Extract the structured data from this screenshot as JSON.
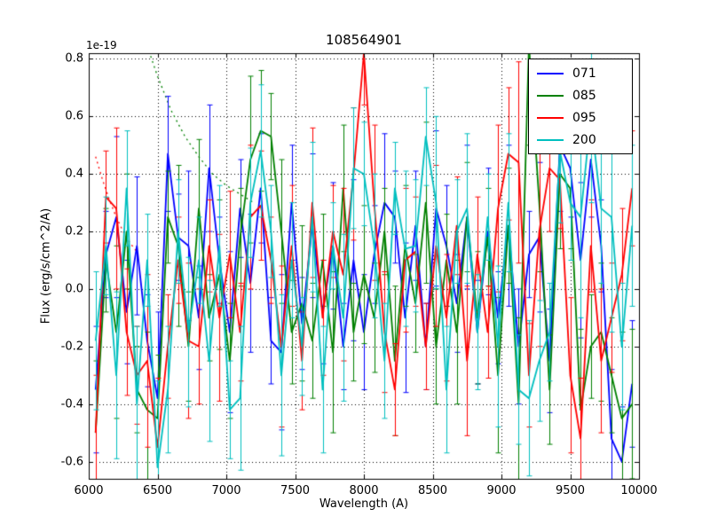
{
  "figure": {
    "title": "108564901",
    "offset_text": "1e-19",
    "xlabel": "Wavelength (A)",
    "ylabel": "Flux (erg/s/cm^2/A)"
  },
  "chart_data": {
    "type": "line",
    "title": "108564901",
    "xlabel": "Wavelength (A)",
    "ylabel": "Flux (erg/s/cm^2/A)",
    "y_scale_factor": "1e-19",
    "grid": true,
    "legend_position": "upper right",
    "xlim": [
      6000,
      10000
    ],
    "ylim": [
      -0.66,
      0.82
    ],
    "x_ticks": [
      6000,
      6500,
      7000,
      7500,
      8000,
      8500,
      9000,
      9500,
      10000
    ],
    "x_tick_labels": [
      "6000",
      "6500",
      "7000",
      "7500",
      "8000",
      "8500",
      "9000",
      "9500",
      "10000"
    ],
    "y_ticks": [
      -0.6,
      -0.4,
      -0.2,
      0.0,
      0.2,
      0.4,
      0.6,
      0.8
    ],
    "y_tick_labels": [
      "-0.6",
      "-0.4",
      "-0.2",
      "0.0",
      "0.2",
      "0.4",
      "0.6",
      "0.8"
    ],
    "x": [
      6050,
      6125,
      6200,
      6275,
      6350,
      6425,
      6500,
      6575,
      6650,
      6725,
      6800,
      6875,
      6950,
      7025,
      7100,
      7175,
      7250,
      7325,
      7400,
      7475,
      7550,
      7625,
      7700,
      7775,
      7850,
      7925,
      8000,
      8075,
      8150,
      8225,
      8300,
      8375,
      8450,
      8525,
      8600,
      8675,
      8750,
      8825,
      8900,
      8975,
      9050,
      9125,
      9200,
      9275,
      9350,
      9425,
      9500,
      9575,
      9650,
      9725,
      9800,
      9875,
      9950
    ],
    "series": [
      {
        "name": "071",
        "color": "#0000ff",
        "values": [
          -0.35,
          0.12,
          0.25,
          -0.08,
          0.15,
          -0.18,
          -0.38,
          0.47,
          0.18,
          0.15,
          -0.1,
          0.42,
          0.1,
          -0.15,
          0.28,
          0.02,
          0.35,
          -0.18,
          -0.22,
          0.3,
          -0.12,
          0.22,
          -0.08,
          0.15,
          -0.2,
          0.1,
          -0.15,
          0.12,
          0.3,
          0.25,
          -0.1,
          0.22,
          -0.2,
          0.28,
          0.15,
          -0.05,
          0.25,
          -0.15,
          0.2,
          -0.1,
          0.22,
          -0.2,
          0.12,
          0.18,
          -0.25,
          0.5,
          0.42,
          0.1,
          0.45,
          0.15,
          -0.52,
          -0.6,
          -0.33
        ],
        "err": [
          0.22,
          0.15,
          0.28,
          0.18,
          0.24,
          0.16,
          0.3,
          0.2,
          0.15,
          0.26,
          0.18,
          0.22,
          0.15,
          0.28,
          0.17,
          0.24,
          0.19,
          0.15,
          0.27,
          0.2,
          0.16,
          0.25,
          0.18,
          0.22,
          0.15,
          0.28,
          0.2,
          0.17,
          0.24,
          0.16,
          0.26,
          0.19,
          0.15,
          0.27,
          0.21,
          0.17,
          0.25,
          0.18,
          0.22,
          0.16,
          0.28,
          0.2,
          0.15,
          0.26,
          0.18,
          0.23,
          0.17,
          0.27,
          0.2,
          0.16,
          0.24,
          0.19,
          0.22
        ]
      },
      {
        "name": "085",
        "color": "#008000",
        "values": [
          -0.5,
          0.1,
          -0.15,
          0.2,
          -0.35,
          -0.42,
          -0.45,
          0.25,
          0.15,
          -0.2,
          0.28,
          -0.1,
          0.05,
          -0.25,
          0.18,
          0.45,
          0.55,
          0.53,
          0.2,
          -0.15,
          -0.05,
          -0.18,
          0.1,
          -0.22,
          0.35,
          -0.15,
          0.05,
          -0.1,
          0.2,
          -0.25,
          0.15,
          -0.05,
          0.3,
          -0.2,
          0.1,
          -0.15,
          0.25,
          -0.1,
          0.18,
          -0.3,
          0.22,
          -0.4,
          0.85,
          0.3,
          -0.35,
          0.4,
          0.35,
          -0.42,
          -0.2,
          -0.15,
          -0.3,
          -0.45,
          -0.4
        ],
        "err": [
          0.25,
          0.18,
          0.3,
          0.2,
          0.15,
          0.27,
          0.22,
          0.16,
          0.28,
          0.19,
          0.24,
          0.15,
          0.26,
          0.2,
          0.17,
          0.29,
          0.21,
          0.15,
          0.25,
          0.18,
          0.27,
          0.2,
          0.16,
          0.28,
          0.22,
          0.17,
          0.24,
          0.19,
          0.15,
          0.26,
          0.21,
          0.17,
          0.28,
          0.2,
          0.16,
          0.25,
          0.19,
          0.23,
          0.17,
          0.27,
          0.2,
          0.3,
          0.35,
          0.24,
          0.19,
          0.26,
          0.21,
          0.28,
          0.18,
          0.24,
          0.2,
          0.3,
          0.26
        ]
      },
      {
        "name": "095",
        "color": "#ff0000",
        "values": [
          -0.5,
          0.32,
          0.28,
          -0.15,
          -0.3,
          -0.25,
          -0.55,
          -0.2,
          0.1,
          -0.18,
          -0.2,
          0.15,
          -0.1,
          0.12,
          -0.15,
          0.25,
          0.29,
          0.1,
          -0.2,
          0.15,
          -0.25,
          0.3,
          -0.1,
          0.2,
          0.05,
          0.4,
          0.82,
          0.3,
          -0.15,
          -0.35,
          0.1,
          0.13,
          -0.2,
          0.15,
          -0.1,
          0.22,
          -0.25,
          0.12,
          -0.15,
          0.28,
          0.47,
          0.44,
          -0.3,
          0.2,
          0.42,
          0.38,
          -0.3,
          -0.52,
          0.15,
          -0.25,
          -0.1,
          0.05,
          0.35
        ],
        "err": [
          0.2,
          0.16,
          0.28,
          0.22,
          0.17,
          0.3,
          0.24,
          0.18,
          0.15,
          0.27,
          0.2,
          0.16,
          0.29,
          0.22,
          0.17,
          0.25,
          0.19,
          0.15,
          0.28,
          0.21,
          0.17,
          0.26,
          0.2,
          0.16,
          0.3,
          0.23,
          0.18,
          0.27,
          0.21,
          0.16,
          0.25,
          0.19,
          0.15,
          0.28,
          0.22,
          0.17,
          0.26,
          0.2,
          0.16,
          0.29,
          0.23,
          0.35,
          0.18,
          0.4,
          0.22,
          0.17,
          0.27,
          0.21,
          0.16,
          0.25,
          0.19,
          0.23,
          0.2
        ]
      },
      {
        "name": "200",
        "color": "#00bfbf",
        "values": [
          -0.18,
          0.15,
          -0.3,
          0.35,
          -0.4,
          0.1,
          -0.62,
          -0.35,
          0.2,
          -0.15,
          0.1,
          -0.25,
          0.15,
          -0.42,
          -0.38,
          0.3,
          0.48,
          0.2,
          -0.3,
          0.1,
          -0.2,
          0.25,
          -0.35,
          0.15,
          -0.1,
          0.42,
          0.4,
          0.15,
          -0.25,
          0.35,
          0.14,
          0.15,
          0.53,
          0.3,
          -0.35,
          0.2,
          0.28,
          -0.15,
          0.25,
          -0.2,
          0.3,
          -0.35,
          -0.38,
          -0.25,
          -0.15,
          0.48,
          0.3,
          0.25,
          0.6,
          0.28,
          0.25,
          -0.2,
          0.22
        ],
        "err": [
          0.24,
          0.17,
          0.29,
          0.2,
          0.27,
          0.16,
          0.3,
          0.22,
          0.18,
          0.26,
          0.15,
          0.28,
          0.21,
          0.17,
          0.25,
          0.19,
          0.23,
          0.16,
          0.28,
          0.2,
          0.17,
          0.26,
          0.22,
          0.15,
          0.29,
          0.21,
          0.18,
          0.25,
          0.2,
          0.16,
          0.27,
          0.23,
          0.17,
          0.3,
          0.22,
          0.18,
          0.26,
          0.2,
          0.15,
          0.28,
          0.24,
          0.19,
          0.27,
          0.21,
          0.17,
          0.25,
          0.2,
          0.35,
          0.3,
          0.26,
          0.4,
          0.22,
          0.28
        ]
      }
    ],
    "model_curves": [
      {
        "color": "#008000",
        "style": "dotted",
        "x": [
          6400,
          6500,
          6600,
          6700,
          6800,
          6900,
          7000,
          7100,
          7200
        ],
        "y": [
          0.88,
          0.74,
          0.62,
          0.53,
          0.46,
          0.4,
          0.36,
          0.33,
          0.3
        ]
      },
      {
        "color": "#ff0000",
        "style": "dotted",
        "x": [
          6050,
          6100,
          6150,
          6200,
          6250,
          6300,
          6350
        ],
        "y": [
          0.46,
          0.38,
          0.31,
          0.25,
          0.2,
          0.16,
          0.13
        ]
      }
    ]
  }
}
